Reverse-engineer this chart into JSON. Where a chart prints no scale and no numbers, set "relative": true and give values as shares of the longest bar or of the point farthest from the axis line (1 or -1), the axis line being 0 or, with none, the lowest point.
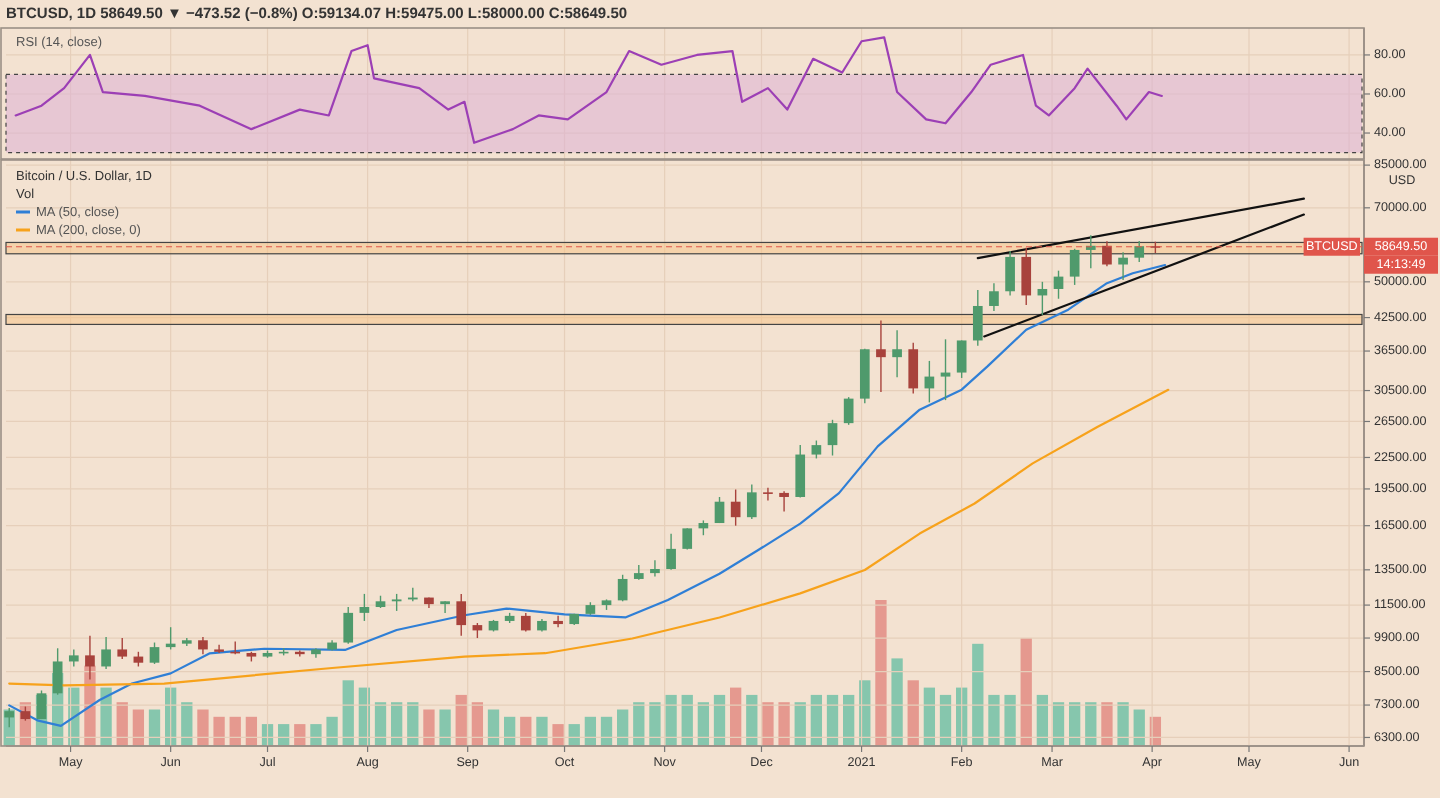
{
  "chart_data": [
    {
      "type": "line",
      "title": "BTCUSD, 1D 58649.50 ▼ −473.52 (−0.8%) O:59134.07 H:59475.00 L:58000.00 C:58649.50",
      "subtitle": "RSI (14, close)",
      "color": "#9c3fb5",
      "grid": true,
      "tick_labels": "y",
      "xlim": [
        "2020-04-11",
        "2021-06-05"
      ],
      "xticks": [
        {
          "value": "2020-05-01",
          "label": null
        },
        {
          "value": "2020-06-01",
          "label": null
        },
        {
          "value": "2020-07-01",
          "label": null
        },
        {
          "value": "2020-08-01",
          "label": null
        },
        {
          "value": "2020-09-01",
          "label": null
        },
        {
          "value": "2020-10-01",
          "label": null
        },
        {
          "value": "2020-11-01",
          "label": null
        },
        {
          "value": "2020-12-01",
          "label": null
        },
        {
          "value": "2021-01-01",
          "label": null
        },
        {
          "value": "2021-02-01",
          "label": null
        },
        {
          "value": "2021-03-01",
          "label": null
        },
        {
          "value": "2021-04-01",
          "label": null
        },
        {
          "value": "2021-05-01",
          "label": null
        },
        {
          "value": "2021-06-01",
          "label": null
        }
      ],
      "ylim": [
        26.7,
        93.8
      ],
      "yticks": [
        {
          "value": 40,
          "label": "40.00"
        },
        {
          "value": 60,
          "label": "60.00"
        },
        {
          "value": 80,
          "label": "80.00"
        }
      ],
      "bands": [
        {
          "axis": "y",
          "from": 30,
          "to": 70,
          "color": "#dcb0d6"
        }
      ],
      "x": [
        "2020-04-14",
        "2020-04-22",
        "2020-04-29",
        "2020-05-07",
        "2020-05-11",
        "2020-05-24",
        "2020-06-10",
        "2020-06-26",
        "2020-07-11",
        "2020-07-20",
        "2020-07-27",
        "2020-08-01",
        "2020-08-03",
        "2020-08-17",
        "2020-08-26",
        "2020-08-31",
        "2020-09-03",
        "2020-09-15",
        "2020-09-23",
        "2020-10-02",
        "2020-10-14",
        "2020-10-21",
        "2020-10-31",
        "2020-11-11",
        "2020-11-22",
        "2020-11-25",
        "2020-12-03",
        "2020-12-09",
        "2020-12-17",
        "2020-12-26",
        "2021-01-01",
        "2021-01-08",
        "2021-01-12",
        "2021-01-21",
        "2021-01-27",
        "2021-02-04",
        "2021-02-10",
        "2021-02-20",
        "2021-02-24",
        "2021-02-28",
        "2021-03-08",
        "2021-03-12",
        "2021-03-21",
        "2021-03-24",
        "2021-03-31",
        "2021-04-04"
      ],
      "values": [
        49,
        54,
        63,
        80,
        61,
        59,
        54,
        42,
        52,
        49,
        82,
        85,
        68,
        63,
        52,
        56,
        35,
        42,
        49,
        47,
        61,
        82,
        75,
        80,
        82,
        56,
        63,
        52,
        78,
        71,
        87,
        89,
        61,
        47,
        45,
        61,
        75,
        80,
        54,
        49,
        63,
        73,
        54,
        47,
        61,
        59
      ]
    },
    {
      "type": "candlestick",
      "title": "Bitcoin / U.S. Dollar, 1D",
      "ylabel": "USD",
      "log": true,
      "grid": true,
      "legend": "top left",
      "xlim": [
        "2020-04-11",
        "2021-06-05"
      ],
      "xticks": [
        {
          "value": "2020-05-01",
          "label": "May"
        },
        {
          "value": "2020-06-01",
          "label": "Jun"
        },
        {
          "value": "2020-07-01",
          "label": "Jul"
        },
        {
          "value": "2020-08-01",
          "label": "Aug"
        },
        {
          "value": "2020-09-01",
          "label": "Sep"
        },
        {
          "value": "2020-10-01",
          "label": "Oct"
        },
        {
          "value": "2020-11-01",
          "label": "Nov"
        },
        {
          "value": "2020-12-01",
          "label": "Dec"
        },
        {
          "value": "2021-01-01",
          "label": "2021"
        },
        {
          "value": "2021-02-01",
          "label": "Feb"
        },
        {
          "value": "2021-03-01",
          "label": "Mar"
        },
        {
          "value": "2021-04-01",
          "label": "Apr"
        },
        {
          "value": "2021-05-01",
          "label": "May"
        },
        {
          "value": "2021-06-01",
          "label": "Jun"
        }
      ],
      "ylim": [
        6060,
        87000
      ],
      "yticks": [
        {
          "value": 85000,
          "label": "85000.00"
        },
        {
          "value": 70000,
          "label": "70000.00"
        },
        {
          "value": 50000,
          "label": "50000.00"
        },
        {
          "value": 42500,
          "label": "42500.00"
        },
        {
          "value": 36500,
          "label": "36500.00"
        },
        {
          "value": 30500,
          "label": "30500.00"
        },
        {
          "value": 26500,
          "label": "26500.00"
        },
        {
          "value": 22500,
          "label": "22500.00"
        },
        {
          "value": 19500,
          "label": "19500.00"
        },
        {
          "value": 16500,
          "label": "16500.00"
        },
        {
          "value": 13500,
          "label": "13500.00"
        },
        {
          "value": 11500,
          "label": "11500.00"
        },
        {
          "value": 9900,
          "label": "9900.00"
        },
        {
          "value": 8500,
          "label": "8500.00"
        },
        {
          "value": 7300,
          "label": "7300.00"
        },
        {
          "value": 6300,
          "label": "6300.00"
        }
      ],
      "x": [
        "2020-04-12",
        "2020-04-17",
        "2020-04-22",
        "2020-04-27",
        "2020-05-02",
        "2020-05-07",
        "2020-05-12",
        "2020-05-17",
        "2020-05-22",
        "2020-05-27",
        "2020-06-01",
        "2020-06-06",
        "2020-06-11",
        "2020-06-16",
        "2020-06-21",
        "2020-06-26",
        "2020-07-01",
        "2020-07-06",
        "2020-07-11",
        "2020-07-16",
        "2020-07-21",
        "2020-07-26",
        "2020-07-31",
        "2020-08-05",
        "2020-08-10",
        "2020-08-15",
        "2020-08-20",
        "2020-08-25",
        "2020-08-30",
        "2020-09-04",
        "2020-09-09",
        "2020-09-14",
        "2020-09-19",
        "2020-09-24",
        "2020-09-29",
        "2020-10-04",
        "2020-10-09",
        "2020-10-14",
        "2020-10-19",
        "2020-10-24",
        "2020-10-29",
        "2020-11-03",
        "2020-11-08",
        "2020-11-13",
        "2020-11-18",
        "2020-11-23",
        "2020-11-28",
        "2020-12-03",
        "2020-12-08",
        "2020-12-13",
        "2020-12-18",
        "2020-12-23",
        "2020-12-28",
        "2021-01-02",
        "2021-01-07",
        "2021-01-12",
        "2021-01-17",
        "2021-01-22",
        "2021-01-27",
        "2021-02-01",
        "2021-02-06",
        "2021-02-11",
        "2021-02-16",
        "2021-02-21",
        "2021-02-26",
        "2021-03-03",
        "2021-03-08",
        "2021-03-13",
        "2021-03-18",
        "2021-03-23",
        "2021-03-28",
        "2021-04-02"
      ],
      "ohlc": [
        [
          6900,
          7200,
          6600,
          7100
        ],
        [
          7100,
          7250,
          6800,
          6850
        ],
        [
          6850,
          7800,
          6850,
          7700
        ],
        [
          7700,
          9450,
          7650,
          8900
        ],
        [
          8900,
          9400,
          8700,
          9150
        ],
        [
          9150,
          10000,
          8200,
          8700
        ],
        [
          8700,
          9950,
          8600,
          9400
        ],
        [
          9400,
          9900,
          9000,
          9100
        ],
        [
          9100,
          9300,
          8700,
          8850
        ],
        [
          8850,
          9700,
          8800,
          9500
        ],
        [
          9500,
          10400,
          9400,
          9650
        ],
        [
          9650,
          9900,
          9550,
          9800
        ],
        [
          9800,
          9950,
          9200,
          9400
        ],
        [
          9400,
          9600,
          9250,
          9300
        ],
        [
          9300,
          9750,
          9200,
          9250
        ],
        [
          9250,
          9300,
          8900,
          9100
        ],
        [
          9100,
          9350,
          9050,
          9250
        ],
        [
          9250,
          9450,
          9150,
          9300
        ],
        [
          9300,
          9350,
          9100,
          9200
        ],
        [
          9200,
          9450,
          9050,
          9400
        ],
        [
          9400,
          9800,
          9350,
          9700
        ],
        [
          9700,
          11400,
          9650,
          11100
        ],
        [
          11100,
          12100,
          10700,
          11400
        ],
        [
          11400,
          12000,
          11350,
          11700
        ],
        [
          11700,
          12100,
          11200,
          11800
        ],
        [
          11800,
          12450,
          11700,
          11900
        ],
        [
          11900,
          11900,
          11350,
          11550
        ],
        [
          11550,
          11700,
          11100,
          11700
        ],
        [
          11700,
          12100,
          10000,
          10500
        ],
        [
          10500,
          10600,
          9900,
          10250
        ],
        [
          10250,
          10750,
          10200,
          10700
        ],
        [
          10700,
          11100,
          10600,
          10950
        ],
        [
          10950,
          11100,
          10200,
          10250
        ],
        [
          10250,
          10800,
          10200,
          10700
        ],
        [
          10700,
          10950,
          10400,
          10550
        ],
        [
          10550,
          11050,
          10500,
          11050
        ],
        [
          11050,
          11650,
          11000,
          11500
        ],
        [
          11500,
          11800,
          11250,
          11750
        ],
        [
          11750,
          13200,
          11700,
          12950
        ],
        [
          12950,
          13800,
          12900,
          13300
        ],
        [
          13300,
          14100,
          13100,
          13550
        ],
        [
          13550,
          15900,
          13500,
          14850
        ],
        [
          14850,
          16300,
          14800,
          16300
        ],
        [
          16300,
          16900,
          15800,
          16700
        ],
        [
          16700,
          18800,
          16700,
          18400
        ],
        [
          18400,
          19450,
          16500,
          17150
        ],
        [
          17150,
          19900,
          17000,
          19200
        ],
        [
          19200,
          19600,
          18500,
          19150
        ],
        [
          19150,
          19300,
          17600,
          18800
        ],
        [
          18800,
          23800,
          18750,
          22800
        ],
        [
          22800,
          24300,
          22400,
          23800
        ],
        [
          23800,
          26700,
          22700,
          26300
        ],
        [
          26300,
          29600,
          26100,
          29400
        ],
        [
          29400,
          36900,
          28800,
          36800
        ],
        [
          36800,
          41950,
          30300,
          35500
        ],
        [
          35500,
          40100,
          32400,
          36800
        ],
        [
          36800,
          37900,
          30100,
          30800
        ],
        [
          30800,
          34900,
          28900,
          32500
        ],
        [
          32500,
          38500,
          29200,
          33100
        ],
        [
          33100,
          38300,
          32300,
          38300
        ],
        [
          38300,
          48200,
          37400,
          44800
        ],
        [
          44800,
          49700,
          43800,
          47900
        ],
        [
          47900,
          57500,
          47000,
          56000
        ],
        [
          56000,
          58400,
          45000,
          47000
        ],
        [
          47000,
          50000,
          43000,
          48400
        ],
        [
          48400,
          52600,
          46300,
          51200
        ],
        [
          51200,
          58100,
          49300,
          57800
        ],
        [
          57800,
          61800,
          53200,
          58900
        ],
        [
          58900,
          60100,
          53700,
          54100
        ],
        [
          54100,
          57200,
          50400,
          55800
        ],
        [
          55800,
          60200,
          54700,
          58800
        ],
        [
          58800,
          60000,
          57000,
          58649.5
        ]
      ],
      "series": [
        {
          "name": "MA (50, close)",
          "type": "line",
          "color": "#2f7fd6",
          "x": [
            "2020-04-12",
            "2020-04-21",
            "2020-04-28",
            "2020-05-10",
            "2020-05-20",
            "2020-06-01",
            "2020-06-13",
            "2020-06-30",
            "2020-07-25",
            "2020-08-10",
            "2020-08-31",
            "2020-09-13",
            "2020-10-01",
            "2020-10-20",
            "2020-11-02",
            "2020-11-18",
            "2020-11-30",
            "2020-12-13",
            "2020-12-25",
            "2021-01-06",
            "2021-01-19",
            "2021-02-01",
            "2021-02-09",
            "2021-02-21",
            "2021-03-06",
            "2021-03-18",
            "2021-03-26",
            "2021-04-05"
          ],
          "values": [
            7290,
            6800,
            6640,
            7470,
            8050,
            8430,
            9230,
            9430,
            9380,
            10270,
            10980,
            11320,
            11020,
            10880,
            11770,
            13260,
            14770,
            16660,
            19130,
            23660,
            27960,
            30620,
            34040,
            40220,
            44060,
            49700,
            52000,
            53970
          ]
        },
        {
          "name": "MA (200, close, 0)",
          "type": "line",
          "color": "#f7a21b",
          "x": [
            "2020-04-12",
            "2020-04-29",
            "2020-05-30",
            "2020-07-21",
            "2020-08-31",
            "2020-09-25",
            "2020-10-22",
            "2020-11-18",
            "2020-12-13",
            "2021-01-02",
            "2021-01-19",
            "2021-02-05",
            "2021-02-23",
            "2021-03-15",
            "2021-04-06"
          ],
          "values": [
            8050,
            7980,
            8050,
            8640,
            9100,
            9240,
            9880,
            10870,
            12130,
            13490,
            15920,
            18250,
            21900,
            25850,
            30600
          ]
        },
        {
          "type": "line",
          "color": "#111111",
          "x": [
            "2021-02-06",
            "2021-05-18"
          ],
          "values": [
            55700,
            73000
          ]
        },
        {
          "type": "line",
          "color": "#111111",
          "x": [
            "2021-02-08",
            "2021-05-18"
          ],
          "values": [
            39000,
            67900
          ]
        }
      ],
      "bands": [
        {
          "axis": "y",
          "from": 56800,
          "to": 59800,
          "color": "#f5c48a"
        },
        {
          "axis": "y",
          "from": 41200,
          "to": 43100,
          "color": "#f5c48a"
        }
      ],
      "ref_lines": [
        {
          "axis": "y",
          "value": 58649.5,
          "label": "58649.50",
          "color": "#e0554b",
          "line_style": "dashed"
        }
      ],
      "annotations": [
        {
          "text": "BTCUSD",
          "y": 58649.5
        },
        "14:13:49"
      ]
    },
    {
      "type": "bar",
      "title": "Vol",
      "relative": true,
      "tick_labels": false,
      "xlim": [
        "2020-04-11",
        "2021-06-05"
      ],
      "x": [
        "2020-04-12",
        "2020-04-17",
        "2020-04-22",
        "2020-04-27",
        "2020-05-02",
        "2020-05-07",
        "2020-05-12",
        "2020-05-17",
        "2020-05-22",
        "2020-05-27",
        "2020-06-01",
        "2020-06-06",
        "2020-06-11",
        "2020-06-16",
        "2020-06-21",
        "2020-06-26",
        "2020-07-01",
        "2020-07-06",
        "2020-07-11",
        "2020-07-16",
        "2020-07-21",
        "2020-07-26",
        "2020-07-31",
        "2020-08-05",
        "2020-08-10",
        "2020-08-15",
        "2020-08-20",
        "2020-08-25",
        "2020-08-30",
        "2020-09-04",
        "2020-09-09",
        "2020-09-14",
        "2020-09-19",
        "2020-09-24",
        "2020-09-29",
        "2020-10-04",
        "2020-10-09",
        "2020-10-14",
        "2020-10-19",
        "2020-10-24",
        "2020-10-29",
        "2020-11-03",
        "2020-11-08",
        "2020-11-13",
        "2020-11-18",
        "2020-11-23",
        "2020-11-28",
        "2020-12-03",
        "2020-12-08",
        "2020-12-13",
        "2020-12-18",
        "2020-12-23",
        "2020-12-28",
        "2021-01-02",
        "2021-01-07",
        "2021-01-12",
        "2021-01-17",
        "2021-01-22",
        "2021-01-27",
        "2021-02-01",
        "2021-02-06",
        "2021-02-11",
        "2021-02-16",
        "2021-02-21",
        "2021-02-26",
        "2021-03-03",
        "2021-03-08",
        "2021-03-13",
        "2021-03-18",
        "2021-03-23",
        "2021-03-28",
        "2021-04-02"
      ],
      "values": [
        0.25,
        0.3,
        0.35,
        0.5,
        0.4,
        0.55,
        0.4,
        0.3,
        0.25,
        0.25,
        0.4,
        0.3,
        0.25,
        0.2,
        0.2,
        0.2,
        0.15,
        0.15,
        0.15,
        0.15,
        0.2,
        0.45,
        0.4,
        0.3,
        0.3,
        0.3,
        0.25,
        0.25,
        0.35,
        0.3,
        0.25,
        0.2,
        0.2,
        0.2,
        0.15,
        0.15,
        0.2,
        0.2,
        0.25,
        0.3,
        0.3,
        0.35,
        0.35,
        0.3,
        0.35,
        0.4,
        0.35,
        0.3,
        0.3,
        0.3,
        0.35,
        0.35,
        0.35,
        0.45,
        1,
        0.6,
        0.45,
        0.4,
        0.35,
        0.4,
        0.7,
        0.35,
        0.35,
        0.74,
        0.35,
        0.3,
        0.3,
        0.3,
        0.3,
        0.3,
        0.25,
        0.2
      ],
      "colors": [
        "#86c6ad",
        "#e5998f",
        "#86c6ad",
        "#86c6ad",
        "#86c6ad",
        "#e5998f",
        "#86c6ad",
        "#e5998f",
        "#e5998f",
        "#86c6ad",
        "#86c6ad",
        "#86c6ad",
        "#e5998f",
        "#e5998f",
        "#e5998f",
        "#e5998f",
        "#86c6ad",
        "#86c6ad",
        "#e5998f",
        "#86c6ad",
        "#86c6ad",
        "#86c6ad",
        "#86c6ad",
        "#86c6ad",
        "#86c6ad",
        "#86c6ad",
        "#e5998f",
        "#86c6ad",
        "#e5998f",
        "#e5998f",
        "#86c6ad",
        "#86c6ad",
        "#e5998f",
        "#86c6ad",
        "#e5998f",
        "#86c6ad",
        "#86c6ad",
        "#86c6ad",
        "#86c6ad",
        "#86c6ad",
        "#86c6ad",
        "#86c6ad",
        "#86c6ad",
        "#86c6ad",
        "#86c6ad",
        "#e5998f",
        "#86c6ad",
        "#e5998f",
        "#e5998f",
        "#86c6ad",
        "#86c6ad",
        "#86c6ad",
        "#86c6ad",
        "#86c6ad",
        "#e5998f",
        "#86c6ad",
        "#e5998f",
        "#86c6ad",
        "#86c6ad",
        "#86c6ad",
        "#86c6ad",
        "#86c6ad",
        "#86c6ad",
        "#e5998f",
        "#86c6ad",
        "#86c6ad",
        "#86c6ad",
        "#86c6ad",
        "#e5998f",
        "#86c6ad",
        "#86c6ad",
        "#e5998f"
      ]
    }
  ]
}
